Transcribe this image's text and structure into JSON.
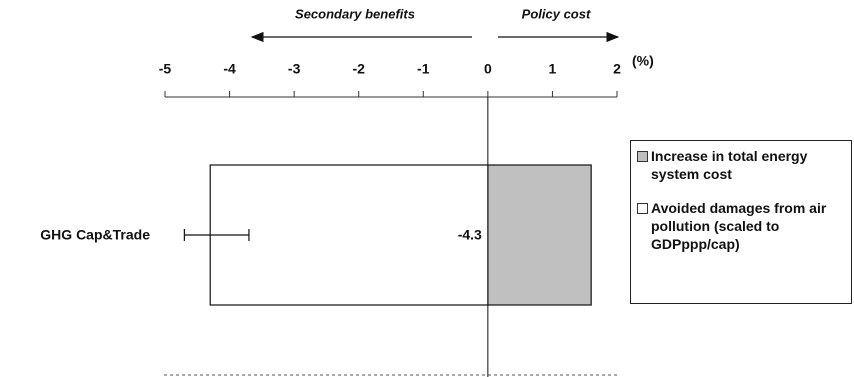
{
  "chart_data": {
    "type": "bar",
    "orientation": "horizontal",
    "categories": [
      "GHG Cap&Trade"
    ],
    "series": [
      {
        "name": "Increase in total energy system cost",
        "color": "#c0c0c0",
        "values": [
          1.6
        ]
      },
      {
        "name": "Avoided damages from air pollution (scaled to GDPppp/cap)",
        "color": "#ffffff",
        "values": [
          -4.3
        ],
        "error_range": [
          [
            -4.7,
            -3.7
          ]
        ]
      }
    ],
    "xlim": [
      -5,
      2
    ],
    "xticks": [
      -5,
      -4,
      -3,
      -2,
      -1,
      0,
      1,
      2
    ],
    "x_unit": "(%)",
    "annotations": [
      "Secondary benefits",
      "Policy cost"
    ]
  }
}
